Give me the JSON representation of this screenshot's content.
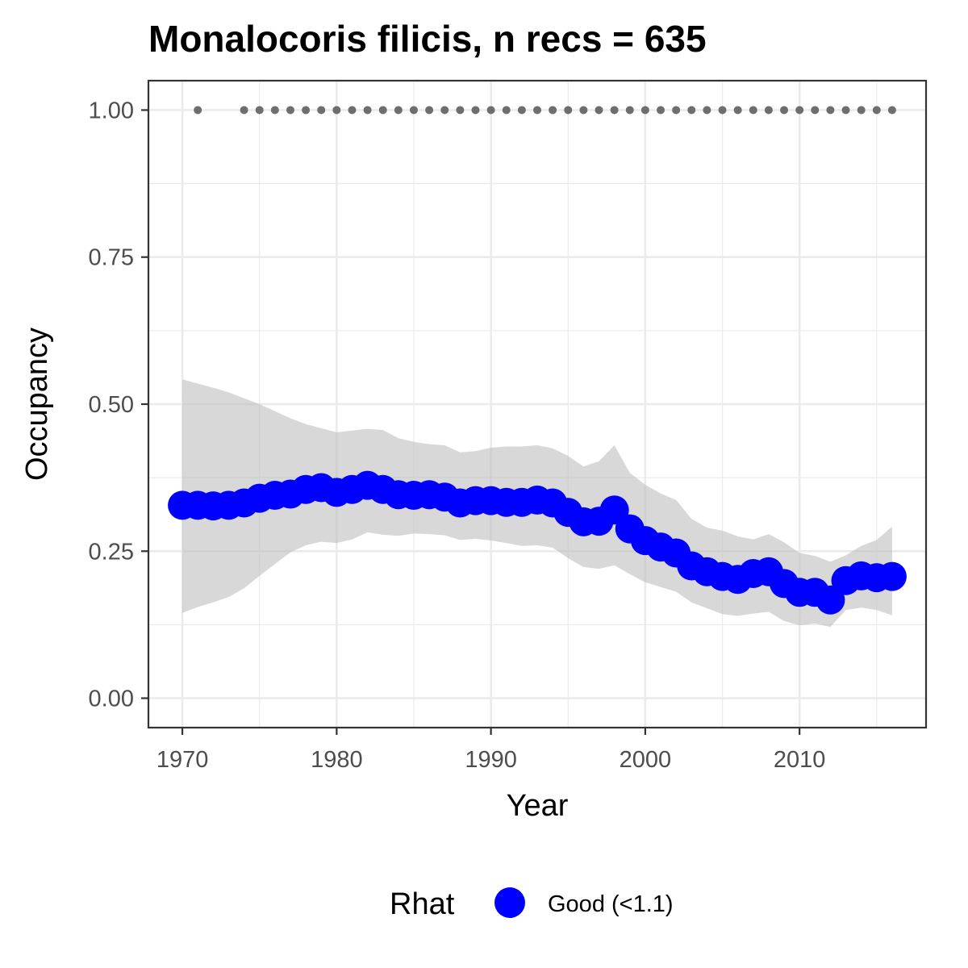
{
  "chart_data": {
    "type": "line",
    "title": "Monalocoris filicis, n recs = 635",
    "xlabel": "Year",
    "ylabel": "Occupancy",
    "xlim": [
      1967.8,
      2018.2
    ],
    "ylim": [
      -0.05,
      1.05
    ],
    "x_ticks": [
      1970,
      1980,
      1990,
      2000,
      2010
    ],
    "x_tick_labels": [
      "1970",
      "1980",
      "1990",
      "2000",
      "2010"
    ],
    "y_ticks": [
      0,
      0.25,
      0.5,
      0.75,
      1.0
    ],
    "y_tick_labels": [
      "0.00",
      "0.25",
      "0.50",
      "0.75",
      "1.00"
    ],
    "grid": true,
    "legend": {
      "title": "Rhat",
      "position": "bottom",
      "entries": [
        {
          "label": "Good (<1.1)",
          "color": "#0000ff"
        }
      ]
    },
    "colors": {
      "series": "#0000ff",
      "ribbon": "#bebebe",
      "records": "#6e6e6e"
    },
    "series": [
      {
        "name": "Good (<1.1)",
        "x": [
          1970,
          1971,
          1972,
          1973,
          1974,
          1975,
          1976,
          1977,
          1978,
          1979,
          1980,
          1981,
          1982,
          1983,
          1984,
          1985,
          1986,
          1987,
          1988,
          1989,
          1990,
          1991,
          1992,
          1993,
          1994,
          1995,
          1996,
          1997,
          1998,
          1999,
          2000,
          2001,
          2002,
          2003,
          2004,
          2005,
          2006,
          2007,
          2008,
          2009,
          2010,
          2011,
          2012,
          2013,
          2014,
          2015,
          2016
        ],
        "values": [
          0.328,
          0.328,
          0.327,
          0.328,
          0.332,
          0.34,
          0.345,
          0.347,
          0.355,
          0.358,
          0.35,
          0.355,
          0.362,
          0.355,
          0.346,
          0.345,
          0.346,
          0.342,
          0.332,
          0.336,
          0.336,
          0.333,
          0.333,
          0.337,
          0.332,
          0.316,
          0.3,
          0.301,
          0.32,
          0.288,
          0.268,
          0.257,
          0.247,
          0.225,
          0.215,
          0.207,
          0.202,
          0.212,
          0.215,
          0.195,
          0.18,
          0.18,
          0.167,
          0.2,
          0.208,
          0.205,
          0.207
        ],
        "lower": [
          0.145,
          0.155,
          0.163,
          0.172,
          0.187,
          0.208,
          0.228,
          0.248,
          0.26,
          0.266,
          0.264,
          0.27,
          0.282,
          0.278,
          0.276,
          0.28,
          0.279,
          0.277,
          0.269,
          0.271,
          0.268,
          0.264,
          0.259,
          0.26,
          0.256,
          0.238,
          0.223,
          0.22,
          0.226,
          0.211,
          0.197,
          0.189,
          0.181,
          0.163,
          0.153,
          0.143,
          0.14,
          0.144,
          0.147,
          0.131,
          0.124,
          0.127,
          0.121,
          0.15,
          0.154,
          0.15,
          0.141
        ],
        "upper": [
          0.542,
          0.535,
          0.528,
          0.52,
          0.51,
          0.5,
          0.488,
          0.476,
          0.466,
          0.459,
          0.452,
          0.455,
          0.458,
          0.456,
          0.442,
          0.436,
          0.432,
          0.43,
          0.418,
          0.42,
          0.426,
          0.428,
          0.428,
          0.43,
          0.425,
          0.412,
          0.394,
          0.403,
          0.43,
          0.383,
          0.363,
          0.348,
          0.337,
          0.305,
          0.29,
          0.285,
          0.275,
          0.27,
          0.279,
          0.265,
          0.247,
          0.242,
          0.232,
          0.243,
          0.259,
          0.269,
          0.292
        ]
      }
    ],
    "records": {
      "value": 1.0,
      "x": [
        1971,
        1974,
        1975,
        1976,
        1977,
        1978,
        1979,
        1980,
        1981,
        1982,
        1983,
        1984,
        1985,
        1986,
        1987,
        1988,
        1989,
        1990,
        1991,
        1992,
        1993,
        1994,
        1995,
        1996,
        1997,
        1998,
        1999,
        2000,
        2001,
        2002,
        2003,
        2004,
        2005,
        2006,
        2007,
        2008,
        2009,
        2010,
        2011,
        2012,
        2013,
        2014,
        2015,
        2016
      ]
    }
  }
}
